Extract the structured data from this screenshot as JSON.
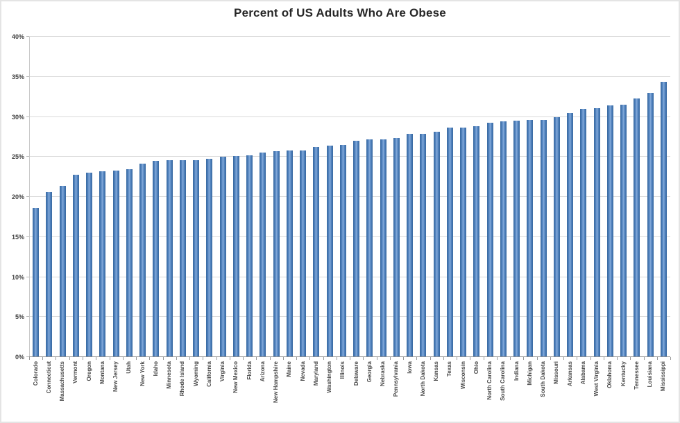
{
  "chart_data": {
    "type": "bar",
    "title": "Percent of US Adults Who Are Obese",
    "xlabel": "",
    "ylabel": "",
    "ylim": [
      0,
      40
    ],
    "ytick_step": 5,
    "yticks": [
      0,
      5,
      10,
      15,
      20,
      25,
      30,
      35,
      40
    ],
    "ytick_labels": [
      "0%",
      "5%",
      "10%",
      "15%",
      "20%",
      "25%",
      "30%",
      "35%",
      "40%"
    ],
    "grid": "horizontal",
    "legend": "none",
    "bar_color": "#4F81BD",
    "gridline_color": "#D9D9D9",
    "axis_color": "#8E8E8E",
    "label_color": "#4A4A4A",
    "title_color": "#262626",
    "background_color": "#FFFFFF",
    "categories": [
      "Colorado",
      "Connecticut",
      "Massachusetts",
      "Vermont",
      "Oregon",
      "Montana",
      "New Jersey",
      "Utah",
      "New York",
      "Idaho",
      "Minnesota",
      "Rhode Island",
      "Wyoming",
      "California",
      "Virginia",
      "New Mexico",
      "Florida",
      "Arizona",
      "New Hampshire",
      "Maine",
      "Nevada",
      "Maryland",
      "Washington",
      "Illinois",
      "Delaware",
      "Georgia",
      "Nebraska",
      "Pennsylvania",
      "Iowa",
      "North Dakota",
      "Kansas",
      "Texas",
      "Wisconsin",
      "Ohio",
      "North Carolina",
      "South Carolina",
      "Indiana",
      "Michigan",
      "South Dakota",
      "Missouri",
      "Arkansas",
      "Alabama",
      "West Virginia",
      "Oklahoma",
      "Kentucky",
      "Tennessee",
      "Louisiana",
      "Mississippi"
    ],
    "values": [
      18.6,
      20.6,
      21.4,
      22.8,
      23.0,
      23.2,
      23.3,
      23.5,
      24.2,
      24.5,
      24.6,
      24.6,
      24.6,
      24.8,
      25.0,
      25.1,
      25.2,
      25.5,
      25.7,
      25.8,
      25.8,
      26.2,
      26.4,
      26.5,
      27.0,
      27.2,
      27.2,
      27.4,
      27.9,
      27.9,
      28.1,
      28.7,
      28.7,
      28.8,
      29.3,
      29.4,
      29.5,
      29.6,
      29.6,
      30.0,
      30.5,
      31.0,
      31.1,
      31.4,
      31.5,
      32.3,
      33.0,
      34.4
    ]
  }
}
